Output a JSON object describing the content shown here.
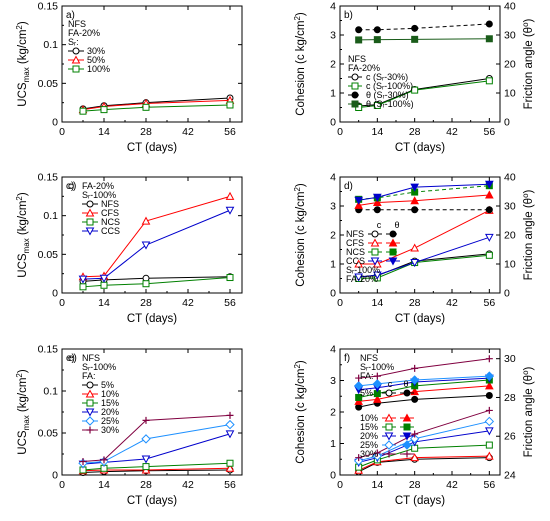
{
  "chart_data": [
    {
      "id": "a",
      "type": "line",
      "panel_label": "a)",
      "xlabel": "CT (days)",
      "ylabel_main": "UCS",
      "ylabel_sub": "max",
      "ylabel_unit": " (kg/cm",
      "ylabel_sup": "2",
      "ylabel_end": ")",
      "xlim": [
        0,
        60
      ],
      "ylim": [
        0,
        0.15
      ],
      "xticks": [
        0,
        14,
        28,
        42,
        56
      ],
      "xtick_labels": [
        "0",
        "14",
        "28",
        "42",
        "56"
      ],
      "yticks": [
        0,
        0.05,
        0.1,
        0.15
      ],
      "ytick_labels": [
        "0",
        "0.05",
        "0.1",
        "0.15"
      ],
      "legend_header": [
        "NFS",
        "FA-20%",
        "Sᵣ:"
      ],
      "series": [
        {
          "name": "30%",
          "color": "#000000",
          "marker": "circle",
          "dash": "",
          "x": [
            7,
            14,
            28,
            56
          ],
          "y": [
            0.017,
            0.021,
            0.025,
            0.031
          ]
        },
        {
          "name": "50%",
          "color": "#ff0000",
          "marker": "triangle",
          "dash": "",
          "x": [
            7,
            14,
            28,
            56
          ],
          "y": [
            0.016,
            0.02,
            0.024,
            0.028
          ]
        },
        {
          "name": "100%",
          "color": "#008000",
          "marker": "square",
          "dash": "",
          "x": [
            7,
            14,
            28,
            56
          ],
          "y": [
            0.014,
            0.016,
            0.019,
            0.022
          ]
        }
      ]
    },
    {
      "id": "b",
      "type": "line",
      "panel_label": "b)",
      "xlabel": "CT (days)",
      "ylabel_main": "Cohesion (c kg/cm",
      "ylabel_sup": "2",
      "ylabel_end": ")",
      "y2label_main": "Friction angle (θ",
      "y2label_sup": "o",
      "y2label_end": ")",
      "xlim": [
        0,
        60
      ],
      "ylim": [
        0,
        4
      ],
      "y2lim": [
        0,
        40
      ],
      "xticks": [
        0,
        14,
        28,
        42,
        56
      ],
      "xtick_labels": [
        "0",
        "14",
        "28",
        "42",
        "56"
      ],
      "yticks": [
        0,
        1,
        2,
        3,
        4
      ],
      "ytick_labels": [
        "0",
        "1",
        "2",
        "3",
        "4"
      ],
      "y2ticks": [
        0,
        10,
        20,
        30,
        40
      ],
      "y2tick_labels": [
        "0",
        "10",
        "20",
        "30",
        "40"
      ],
      "legend_header": [
        "NFS",
        "FA-20%"
      ],
      "series": [
        {
          "name": "c (Sᵣ-30%)",
          "color": "#000000",
          "marker": "circle",
          "dash": "",
          "axis": "left",
          "x": [
            7,
            14,
            28,
            56
          ],
          "y": [
            0.55,
            0.6,
            1.12,
            1.5
          ]
        },
        {
          "name": "c (Sᵣ-100%)",
          "color": "#008000",
          "marker": "square",
          "dash": "",
          "axis": "left",
          "x": [
            7,
            14,
            28,
            56
          ],
          "y": [
            0.5,
            0.57,
            1.1,
            1.42
          ]
        },
        {
          "name": "θ (Sᵣ-30%)",
          "color": "#000000",
          "marker": "dot",
          "dash": "4,3",
          "axis": "right",
          "x": [
            7,
            14,
            28,
            56
          ],
          "y": [
            31.8,
            31.8,
            32.3,
            33.8
          ]
        },
        {
          "name": "θ (Sᵣ-100%)",
          "color": "#1a5c1a",
          "marker": "filled-square",
          "dash": "",
          "axis": "right",
          "x": [
            7,
            14,
            28,
            56
          ],
          "y": [
            28.3,
            28.4,
            28.5,
            28.7
          ]
        }
      ]
    },
    {
      "id": "c",
      "type": "line",
      "panel_label": "c)",
      "xlabel": "CT (days)",
      "ylabel_main": "UCS",
      "ylabel_sub": "max",
      "ylabel_unit": " (kg/cm",
      "ylabel_sup": "2",
      "ylabel_end": ")",
      "xlim": [
        0,
        60
      ],
      "ylim": [
        0,
        0.15
      ],
      "xticks": [
        0,
        14,
        28,
        42,
        56
      ],
      "xtick_labels": [
        "0",
        "14",
        "28",
        "42",
        "56"
      ],
      "yticks": [
        0,
        0.05,
        0.1,
        0.15
      ],
      "ytick_labels": [
        "0",
        "0.05",
        "0.1",
        "0.15"
      ],
      "legend_header": [
        "FA-20%",
        "Sᵣ-100%"
      ],
      "series": [
        {
          "name": "NFS",
          "color": "#000000",
          "marker": "circle",
          "dash": "",
          "x": [
            7,
            14,
            28,
            56
          ],
          "y": [
            0.015,
            0.017,
            0.019,
            0.021
          ]
        },
        {
          "name": "CFS",
          "color": "#ff0000",
          "marker": "triangle",
          "dash": "",
          "x": [
            7,
            14,
            28,
            56
          ],
          "y": [
            0.021,
            0.022,
            0.093,
            0.125
          ]
        },
        {
          "name": "NCS",
          "color": "#008000",
          "marker": "square",
          "dash": "",
          "x": [
            7,
            14,
            28,
            56
          ],
          "y": [
            0.008,
            0.01,
            0.012,
            0.02
          ]
        },
        {
          "name": "CCS",
          "color": "#0000cc",
          "marker": "inv-triangle",
          "dash": "",
          "x": [
            7,
            14,
            28,
            56
          ],
          "y": [
            0.018,
            0.019,
            0.062,
            0.107
          ]
        }
      ]
    },
    {
      "id": "d",
      "type": "line",
      "panel_label": "d)",
      "xlabel": "CT (days)",
      "ylabel_main": "Cohesion (c kg/cm",
      "ylabel_sup": "2",
      "ylabel_end": ")",
      "y2label_main": "Friction angle (θ",
      "y2label_sup": "o",
      "y2label_end": ")",
      "xlim": [
        0,
        60
      ],
      "ylim": [
        0,
        4
      ],
      "y2lim": [
        0,
        40
      ],
      "xticks": [
        0,
        14,
        28,
        42,
        56
      ],
      "xtick_labels": [
        "0",
        "14",
        "28",
        "42",
        "56"
      ],
      "yticks": [
        0,
        1,
        2,
        3,
        4
      ],
      "ytick_labels": [
        "0",
        "1",
        "2",
        "3",
        "4"
      ],
      "y2ticks": [
        0,
        10,
        20,
        30,
        40
      ],
      "y2tick_labels": [
        "0",
        "10",
        "20",
        "30",
        "40"
      ],
      "legend_header": [
        "Sᵣ-100%",
        "FA-20%"
      ],
      "legend_cols": [
        "c",
        "θ"
      ],
      "legend_rows": [
        "NFS",
        "CFS",
        "NCS",
        "CCS"
      ],
      "series": [
        {
          "name": "c NFS",
          "color": "#000000",
          "marker": "circle",
          "dash": "",
          "axis": "left",
          "x": [
            7,
            14,
            28,
            56
          ],
          "y": [
            0.55,
            0.6,
            1.1,
            1.35
          ]
        },
        {
          "name": "c CFS",
          "color": "#ff0000",
          "marker": "triangle",
          "dash": "",
          "axis": "left",
          "x": [
            7,
            14,
            28,
            56
          ],
          "y": [
            1.0,
            1.0,
            1.55,
            2.85
          ]
        },
        {
          "name": "c NCS",
          "color": "#008000",
          "marker": "square",
          "dash": "",
          "axis": "left",
          "x": [
            7,
            14,
            28,
            56
          ],
          "y": [
            0.5,
            0.52,
            1.05,
            1.3
          ]
        },
        {
          "name": "c CCS",
          "color": "#0000cc",
          "marker": "inv-triangle",
          "dash": "",
          "axis": "left",
          "x": [
            7,
            14,
            28,
            56
          ],
          "y": [
            0.55,
            0.62,
            1.05,
            1.92
          ]
        },
        {
          "name": "θ NFS",
          "color": "#000000",
          "marker": "dot",
          "dash": "4,3",
          "axis": "right",
          "x": [
            7,
            14,
            28,
            56
          ],
          "y": [
            28.7,
            28.7,
            28.7,
            28.7
          ]
        },
        {
          "name": "θ CFS",
          "color": "#ff0000",
          "marker": "filled-triangle",
          "dash": "",
          "axis": "right",
          "x": [
            7,
            14,
            28,
            56
          ],
          "y": [
            30.2,
            31.2,
            31.8,
            33.8
          ]
        },
        {
          "name": "θ NCS",
          "color": "#008000",
          "marker": "filled-square",
          "dash": "4,3",
          "axis": "right",
          "x": [
            7,
            14,
            28,
            56
          ],
          "y": [
            32.3,
            32.8,
            34.8,
            37.0
          ]
        },
        {
          "name": "θ CCS",
          "color": "#0000cc",
          "marker": "filled-inv-triangle",
          "dash": "",
          "axis": "right",
          "x": [
            7,
            14,
            28,
            56
          ],
          "y": [
            32.0,
            33.0,
            36.5,
            37.5
          ]
        }
      ]
    },
    {
      "id": "e",
      "type": "line",
      "panel_label": "e)",
      "xlabel": "CT (days)",
      "ylabel_main": "UCS",
      "ylabel_sub": "max",
      "ylabel_unit": " (kg/cm",
      "ylabel_sup": "2",
      "ylabel_end": ")",
      "xlim": [
        0,
        60
      ],
      "ylim": [
        0,
        0.15
      ],
      "xticks": [
        0,
        14,
        28,
        42,
        56
      ],
      "xtick_labels": [
        "0",
        "14",
        "28",
        "42",
        "56"
      ],
      "yticks": [
        0,
        0.05,
        0.1,
        0.15
      ],
      "ytick_labels": [
        "0",
        "0.05",
        "0.1",
        "0.15"
      ],
      "legend_header": [
        "NFS",
        "Sᵣ-100%",
        "FA:"
      ],
      "series": [
        {
          "name": "5%",
          "color": "#000000",
          "marker": "circle",
          "dash": "",
          "x": [
            7,
            14,
            28,
            56
          ],
          "y": [
            0.003,
            0.004,
            0.005,
            0.006
          ]
        },
        {
          "name": "10%",
          "color": "#ff0000",
          "marker": "triangle",
          "dash": "",
          "x": [
            7,
            14,
            28,
            56
          ],
          "y": [
            0.005,
            0.006,
            0.006,
            0.008
          ]
        },
        {
          "name": "15%",
          "color": "#008000",
          "marker": "square",
          "dash": "",
          "x": [
            7,
            14,
            28,
            56
          ],
          "y": [
            0.006,
            0.008,
            0.01,
            0.014
          ]
        },
        {
          "name": "20%",
          "color": "#0000cc",
          "marker": "inv-triangle",
          "dash": "",
          "x": [
            7,
            14,
            28,
            56
          ],
          "y": [
            0.013,
            0.015,
            0.019,
            0.049
          ]
        },
        {
          "name": "25%",
          "color": "#1e90ff",
          "marker": "diamond",
          "dash": "",
          "x": [
            7,
            14,
            28,
            56
          ],
          "y": [
            0.014,
            0.016,
            0.043,
            0.06
          ]
        },
        {
          "name": "30%",
          "color": "#800040",
          "marker": "plus",
          "dash": "",
          "x": [
            7,
            14,
            28,
            56
          ],
          "y": [
            0.016,
            0.018,
            0.065,
            0.071
          ]
        }
      ]
    },
    {
      "id": "f",
      "type": "line",
      "panel_label": "f)",
      "xlabel": "CT (days)",
      "ylabel_main": "Cohesion (c kg/cm",
      "ylabel_sup": "2",
      "ylabel_end": ")",
      "y2label_main": "Friction angle (θ",
      "y2label_sup": "o",
      "y2label_end": ")",
      "xlim": [
        0,
        60
      ],
      "ylim": [
        0,
        4
      ],
      "y2lim": [
        24,
        30.5
      ],
      "xticks": [
        0,
        14,
        28,
        42,
        56
      ],
      "xtick_labels": [
        "0",
        "14",
        "28",
        "42",
        "56"
      ],
      "yticks": [
        0,
        1,
        2,
        3,
        4
      ],
      "ytick_labels": [
        "0",
        "1",
        "2",
        "3",
        "4"
      ],
      "y2ticks": [
        24,
        26,
        28,
        30
      ],
      "y2tick_labels": [
        "24",
        "26",
        "28",
        "30"
      ],
      "legend_header": [
        "NFS",
        "Sᵣ-100%",
        "FA:"
      ],
      "legend_cols": [
        "c",
        "θ"
      ],
      "legend_rows": [
        "5%",
        "10%",
        "15%",
        "20%",
        "25%",
        "30%"
      ],
      "series": [
        {
          "name": "c 5%",
          "color": "#000000",
          "marker": "circle",
          "dash": "",
          "axis": "left",
          "x": [
            7,
            14,
            28,
            56
          ],
          "y": [
            0.1,
            0.4,
            0.5,
            0.55
          ]
        },
        {
          "name": "c 10%",
          "color": "#ff0000",
          "marker": "triangle",
          "dash": "",
          "axis": "left",
          "x": [
            7,
            14,
            28,
            56
          ],
          "y": [
            0.15,
            0.42,
            0.55,
            0.6
          ]
        },
        {
          "name": "c 15%",
          "color": "#008000",
          "marker": "square",
          "dash": "",
          "axis": "left",
          "x": [
            7,
            14,
            28,
            56
          ],
          "y": [
            0.25,
            0.48,
            0.85,
            0.95
          ]
        },
        {
          "name": "c 20%",
          "color": "#0000cc",
          "marker": "inv-triangle",
          "dash": "",
          "axis": "left",
          "x": [
            7,
            14,
            28,
            56
          ],
          "y": [
            0.4,
            0.55,
            1.05,
            1.4
          ]
        },
        {
          "name": "c 25%",
          "color": "#1e90ff",
          "marker": "diamond",
          "dash": "",
          "axis": "left",
          "x": [
            7,
            14,
            28,
            56
          ],
          "y": [
            0.45,
            0.6,
            1.15,
            1.7
          ]
        },
        {
          "name": "c 30%",
          "color": "#800040",
          "marker": "plus",
          "dash": "",
          "axis": "left",
          "x": [
            7,
            14,
            28,
            56
          ],
          "y": [
            0.55,
            0.7,
            1.3,
            2.05
          ]
        },
        {
          "name": "θ 5%",
          "color": "#000000",
          "marker": "dot",
          "dash": "",
          "axis": "right",
          "x": [
            7,
            14,
            28,
            56
          ],
          "y": [
            27.5,
            27.7,
            27.9,
            28.1
          ]
        },
        {
          "name": "θ 10%",
          "color": "#ff0000",
          "marker": "filled-triangle",
          "dash": "",
          "axis": "right",
          "x": [
            7,
            14,
            28,
            56
          ],
          "y": [
            27.8,
            27.9,
            28.3,
            28.6
          ]
        },
        {
          "name": "θ 15%",
          "color": "#008000",
          "marker": "filled-square",
          "dash": "",
          "axis": "right",
          "x": [
            7,
            14,
            28,
            56
          ],
          "y": [
            28.0,
            28.2,
            28.6,
            28.9
          ]
        },
        {
          "name": "θ 20%",
          "color": "#0000cc",
          "marker": "filled-inv-triangle",
          "dash": "",
          "axis": "right",
          "x": [
            7,
            14,
            28,
            56
          ],
          "y": [
            28.4,
            28.5,
            28.8,
            29.0
          ]
        },
        {
          "name": "θ 25%",
          "color": "#1e90ff",
          "marker": "filled-diamond",
          "dash": "",
          "axis": "right",
          "x": [
            7,
            14,
            28,
            56
          ],
          "y": [
            28.6,
            28.7,
            28.9,
            29.1
          ]
        },
        {
          "name": "θ 30%",
          "color": "#800040",
          "marker": "plus",
          "dash": "",
          "axis": "right",
          "x": [
            7,
            14,
            28,
            56
          ],
          "y": [
            29.0,
            29.1,
            29.5,
            30.0
          ]
        }
      ]
    }
  ]
}
